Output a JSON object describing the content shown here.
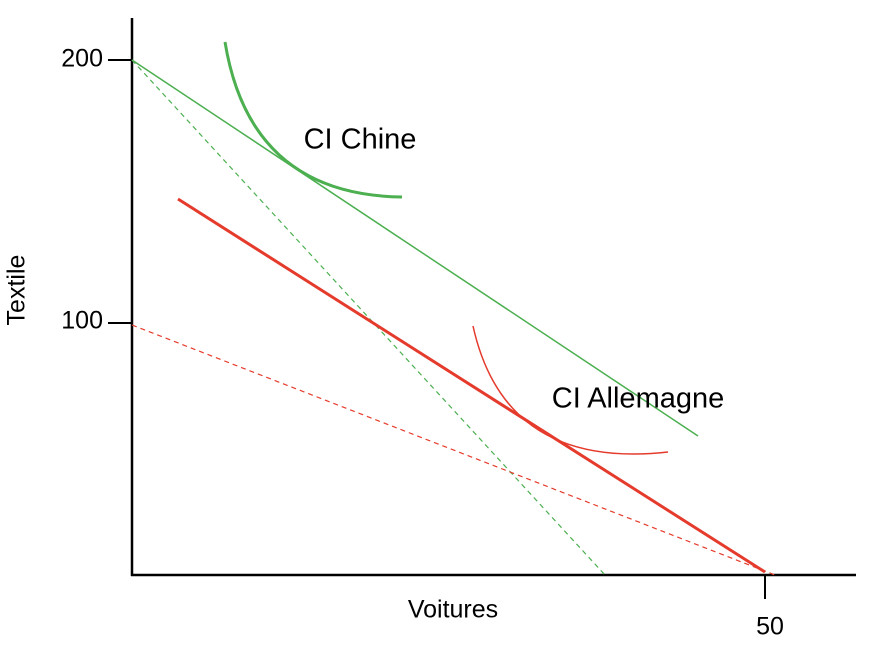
{
  "y_axis": {
    "label": "Textile",
    "ticks": [
      200,
      100
    ]
  },
  "x_axis": {
    "label": "Voitures",
    "ticks": [
      50
    ]
  },
  "curves": [
    {
      "label": "CI Chine"
    },
    {
      "label": "CI Allemagne"
    }
  ]
}
